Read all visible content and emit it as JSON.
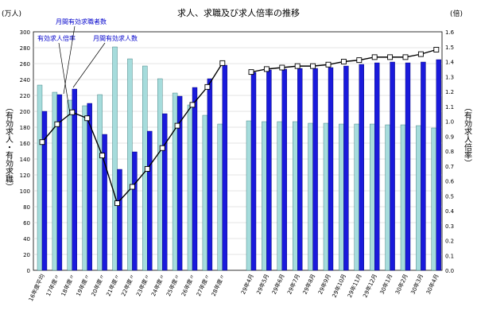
{
  "chart_data": {
    "type": "bar",
    "title": "求人、求職及び求人倍率の推移",
    "y_left_unit": "(万人)",
    "y_right_unit": "(倍)",
    "y_left_label": "（有効求人・有効求職）",
    "y_right_label": "（有効求人倍率）",
    "ylim_left": [
      0,
      300
    ],
    "ylim_right": [
      0,
      1.6
    ],
    "yticks_left": [
      "0",
      "20",
      "40",
      "60",
      "80",
      "100",
      "120",
      "140",
      "160",
      "180",
      "200",
      "220",
      "240",
      "260",
      "280",
      "300"
    ],
    "yticks_right": [
      "0.0",
      "0.1",
      "0.2",
      "0.3",
      "0.4",
      "0.5",
      "0.6",
      "0.7",
      "0.8",
      "0.9",
      "1.0",
      "1.1",
      "1.2",
      "1.3",
      "1.4",
      "1.5",
      "1.6"
    ],
    "categories_annual": [
      "16年度平均",
      "17年度〃",
      "18年度〃",
      "19年度〃",
      "20年度〃",
      "21年度〃",
      "22年度〃",
      "23年度〃",
      "24年度〃",
      "25年度〃",
      "26年度〃",
      "27年度〃",
      "28年度〃"
    ],
    "categories_monthly": [
      "29年4月",
      "29年5月",
      "29年6月",
      "29年7月",
      "29年8月",
      "29年9月",
      "29年10月",
      "29年11月",
      "29年12月",
      "30年1月",
      "30年2月",
      "30年3月",
      "30年4月"
    ],
    "series": [
      {
        "name": "月間有効求職者数",
        "color": "#a6dcdc",
        "annual": [
          233,
          224,
          214,
          207,
          221,
          281,
          266,
          257,
          241,
          223,
          208,
          195,
          184
        ],
        "monthly": [
          188,
          187,
          187,
          187,
          185,
          185,
          184,
          184,
          184,
          183,
          183,
          182,
          179
        ]
      },
      {
        "name": "月間有効求人数",
        "color": "#1a1adb",
        "annual": [
          200,
          221,
          228,
          210,
          171,
          127,
          149,
          175,
          197,
          219,
          230,
          241,
          258
        ],
        "monthly": [
          249,
          252,
          253,
          254,
          254,
          255,
          257,
          259,
          261,
          262,
          261,
          262,
          265
        ]
      },
      {
        "name": "有効求人倍率",
        "color": "#000000",
        "annual": [
          0.86,
          0.98,
          1.06,
          1.02,
          0.77,
          0.45,
          0.56,
          0.68,
          0.82,
          0.97,
          1.11,
          1.23,
          1.39
        ],
        "monthly": [
          1.33,
          1.35,
          1.36,
          1.37,
          1.37,
          1.38,
          1.4,
          1.41,
          1.43,
          1.43,
          1.43,
          1.45,
          1.48
        ]
      }
    ],
    "legend": [
      "有効求人倍率",
      "月間有効求職者数",
      "月間有効求人数"
    ],
    "grid": true,
    "ratio_style": "line with white square markers"
  }
}
